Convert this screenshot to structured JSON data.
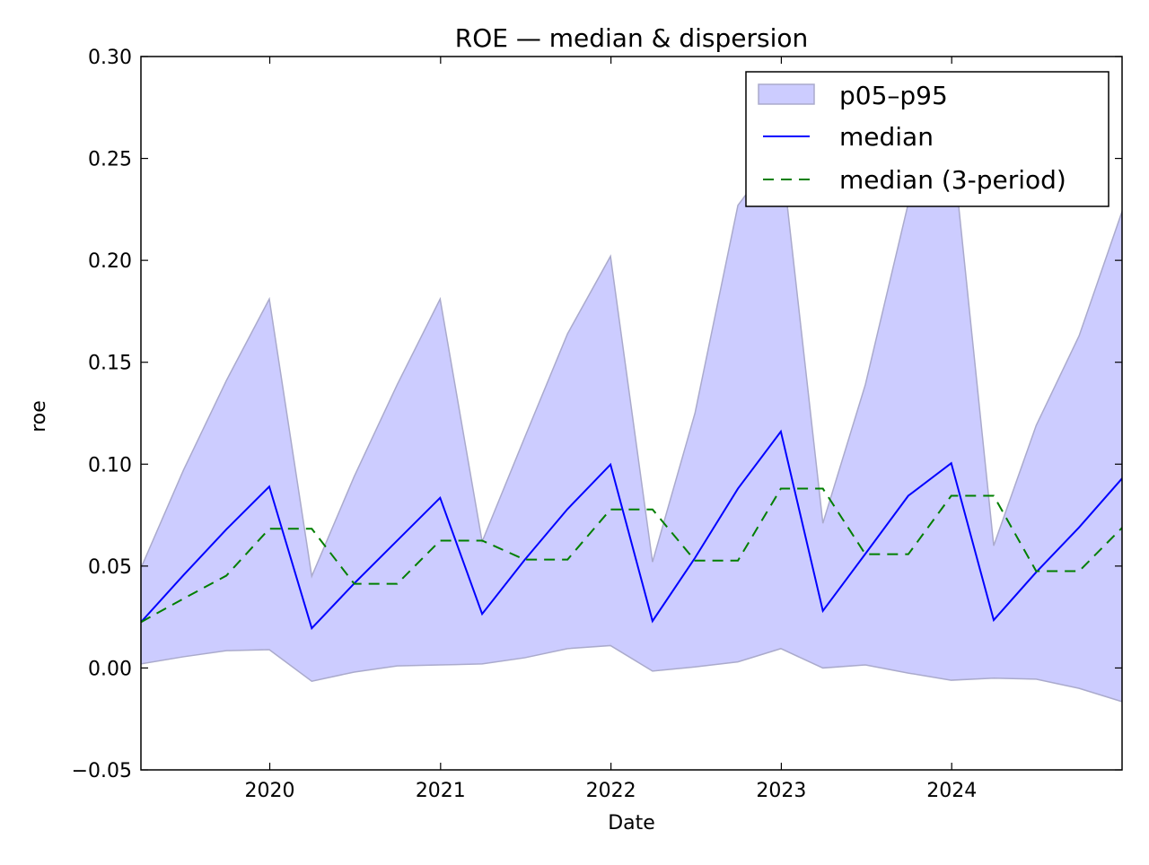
{
  "chart_data": {
    "type": "line",
    "title": "ROE — median & dispersion",
    "xlabel": "Date",
    "ylabel": "roe",
    "xlim": [
      "2019-03-31",
      "2024-12-31"
    ],
    "ylim": [
      -0.05,
      0.3
    ],
    "yticks": [
      -0.05,
      0.0,
      0.05,
      0.1,
      0.15,
      0.2,
      0.25,
      0.3
    ],
    "ytick_labels": [
      "−0.05",
      "0.00",
      "0.05",
      "0.10",
      "0.15",
      "0.20",
      "0.25",
      "0.30"
    ],
    "xticks": [
      "2020-01-01",
      "2021-01-01",
      "2022-01-01",
      "2023-01-01",
      "2024-01-01"
    ],
    "xtick_labels": [
      "2020",
      "2021",
      "2022",
      "2023",
      "2024"
    ],
    "grid": false,
    "legend_position": "top-right",
    "x": [
      "2019-03-31",
      "2019-06-30",
      "2019-09-30",
      "2019-12-31",
      "2020-03-31",
      "2020-06-30",
      "2020-09-30",
      "2020-12-31",
      "2021-03-31",
      "2021-06-30",
      "2021-09-30",
      "2021-12-31",
      "2022-03-31",
      "2022-06-30",
      "2022-09-30",
      "2022-12-31",
      "2023-03-31",
      "2023-06-30",
      "2023-09-30",
      "2023-12-31",
      "2024-03-31",
      "2024-06-30",
      "2024-09-30",
      "2024-12-31"
    ],
    "series": [
      {
        "name": "p05–p95",
        "kind": "band",
        "color": "#ccccff",
        "edge_color": "#aaaacc",
        "lower": [
          0.002,
          0.0055,
          0.0085,
          0.009,
          -0.0065,
          -0.002,
          0.001,
          0.0015,
          0.002,
          0.005,
          0.0095,
          0.011,
          -0.0015,
          0.0005,
          0.003,
          0.0095,
          0.0,
          0.0015,
          -0.0025,
          -0.006,
          -0.005,
          -0.0055,
          -0.01,
          -0.0165
        ],
        "upper": [
          0.049,
          0.097,
          0.141,
          0.181,
          0.045,
          0.094,
          0.139,
          0.181,
          0.062,
          0.113,
          0.164,
          0.202,
          0.052,
          0.125,
          0.227,
          0.255,
          0.071,
          0.139,
          0.228,
          0.262,
          0.06,
          0.119,
          0.163,
          0.224
        ]
      },
      {
        "name": "median",
        "kind": "line",
        "color": "#0000ff",
        "dash": "solid",
        "values": [
          0.0225,
          0.0455,
          0.068,
          0.089,
          0.0195,
          0.0415,
          0.0625,
          0.0835,
          0.0265,
          0.053,
          0.078,
          0.0998,
          0.023,
          0.054,
          0.088,
          0.116,
          0.028,
          0.056,
          0.0845,
          0.1005,
          0.0235,
          0.047,
          0.069,
          0.093
        ]
      },
      {
        "name": "median (3-period)",
        "kind": "line",
        "color": "#007f00",
        "dash": "dashed",
        "values": [
          0.0225,
          0.034,
          0.0453,
          0.0683,
          0.0683,
          0.0413,
          0.0413,
          0.0625,
          0.0625,
          0.0532,
          0.0532,
          0.0778,
          0.0778,
          0.0527,
          0.0527,
          0.088,
          0.088,
          0.0558,
          0.0558,
          0.0845,
          0.0845,
          0.0475,
          0.0475,
          0.0688
        ]
      }
    ]
  }
}
